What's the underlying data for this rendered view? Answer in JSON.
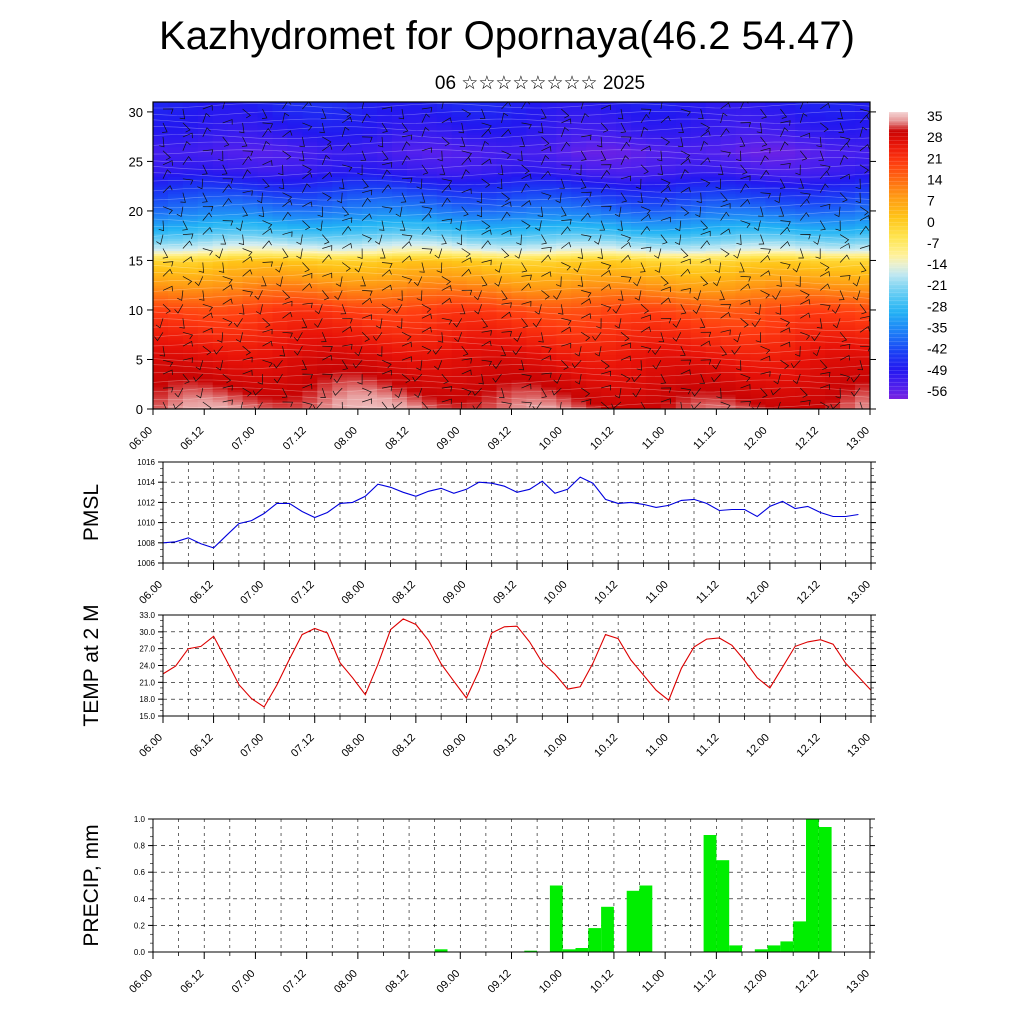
{
  "header": {
    "title": "Kazhydromet for Opornaya(46.2 54.47)",
    "subtitle": "06 ☆☆☆☆☆☆☆☆ 2025"
  },
  "chart_data": [
    {
      "type": "heatmap",
      "name_hint": "temperature-wind-cross-section",
      "xlabel": "",
      "ylabel": "",
      "x_ticks": [
        "06.00",
        "06.12",
        "07.00",
        "07.12",
        "08.00",
        "08.12",
        "09.00",
        "09.12",
        "10.00",
        "10.12",
        "11.00",
        "11.12",
        "12.00",
        "12.12",
        "13.00"
      ],
      "y_ticks": [
        0,
        5,
        10,
        15,
        20,
        25,
        30
      ],
      "ylim": [
        0,
        31
      ],
      "value_profile": {
        "levels": [
          0,
          5,
          10,
          13,
          15,
          16,
          18,
          20,
          22,
          24,
          26,
          28,
          31
        ],
        "values": [
          34,
          28,
          20,
          8,
          0,
          -14,
          -28,
          -38,
          -45,
          -53,
          -56,
          -52,
          -49
        ]
      },
      "colorbar": {
        "labels": [
          "35",
          "28",
          "21",
          "14",
          "7",
          "0",
          "-7",
          "-14",
          "-21",
          "-28",
          "-35",
          "-42",
          "-49",
          "-56"
        ],
        "range": [
          -60,
          38
        ]
      },
      "wind_barbs": true
    },
    {
      "type": "line",
      "ylabel": "PMSL",
      "ylim": [
        1006,
        1016
      ],
      "y_ticks": [
        "1006",
        "1008",
        "1010",
        "1012",
        "1014",
        "1016"
      ],
      "x_ticks": [
        "06.00",
        "06.12",
        "07.00",
        "07.12",
        "08.00",
        "08.12",
        "09.00",
        "09.12",
        "10.00",
        "10.12",
        "11.00",
        "11.12",
        "12.00",
        "12.12",
        "13.00"
      ],
      "x_step_hours": 3,
      "color": "#0000dd",
      "values": [
        1008.0,
        1008.1,
        1008.5,
        1007.9,
        1007.5,
        1008.7,
        1009.9,
        1010.2,
        1010.9,
        1011.9,
        1011.9,
        1011.1,
        1010.5,
        1011.0,
        1011.9,
        1012.0,
        1012.6,
        1013.8,
        1013.5,
        1013.0,
        1012.6,
        1013.1,
        1013.4,
        1012.9,
        1013.3,
        1014.0,
        1013.9,
        1013.6,
        1013.0,
        1013.3,
        1014.1,
        1012.9,
        1013.3,
        1014.5,
        1013.9,
        1012.3,
        1011.9,
        1012.0,
        1011.8,
        1011.5,
        1011.7,
        1012.2,
        1012.3,
        1011.9,
        1011.2,
        1011.3,
        1011.3,
        1010.6,
        1011.6,
        1012.1,
        1011.4,
        1011.6,
        1011.0,
        1010.6,
        1010.6,
        1010.8
      ]
    },
    {
      "type": "line",
      "ylabel": "TEMP at 2 M",
      "ylim": [
        15,
        33
      ],
      "y_ticks": [
        "15.0",
        "18.0",
        "21.0",
        "24.0",
        "27.0",
        "30.0",
        "33.0"
      ],
      "x_ticks": [
        "06.00",
        "06.12",
        "07.00",
        "07.12",
        "08.00",
        "08.12",
        "09.00",
        "09.12",
        "10.00",
        "10.12",
        "11.00",
        "11.12",
        "12.00",
        "12.12",
        "13.00"
      ],
      "x_step_hours": 3,
      "color": "#dd0000",
      "values": [
        22.5,
        23.9,
        27.0,
        27.4,
        29.2,
        25.0,
        20.6,
        18.1,
        16.6,
        20.5,
        25.1,
        29.5,
        30.6,
        29.8,
        24.5,
        21.8,
        18.8,
        24.2,
        30.4,
        32.3,
        31.3,
        28.5,
        24.3,
        21.2,
        18.2,
        23.1,
        29.8,
        30.9,
        31.0,
        28.2,
        24.5,
        22.5,
        19.8,
        20.2,
        24.4,
        29.5,
        28.8,
        25.0,
        22.3,
        19.6,
        17.8,
        23.5,
        27.3,
        28.7,
        28.9,
        27.6,
        24.9,
        21.8,
        20.0,
        23.7,
        27.4,
        28.2,
        28.6,
        27.8,
        24.4,
        22.0,
        19.6
      ]
    },
    {
      "type": "bar",
      "ylabel": "PRECIP, mm",
      "ylim": [
        0,
        1.0
      ],
      "y_ticks": [
        "0.0",
        "0.2",
        "0.4",
        "0.6",
        "0.8",
        "1.0"
      ],
      "x_ticks": [
        "06.00",
        "06.12",
        "07.00",
        "07.12",
        "08.00",
        "08.12",
        "09.00",
        "09.12",
        "10.00",
        "10.12",
        "11.00",
        "11.12",
        "12.00",
        "12.12",
        "13.00"
      ],
      "x_step_hours": 3,
      "color": "#00ee00",
      "values": [
        0,
        0,
        0,
        0,
        0,
        0,
        0,
        0,
        0,
        0,
        0,
        0,
        0,
        0,
        0,
        0,
        0,
        0,
        0,
        0,
        0,
        0,
        0.02,
        0,
        0,
        0,
        0,
        0,
        0,
        0.01,
        0,
        0.5,
        0.02,
        0.03,
        0.18,
        0.34,
        0,
        0.46,
        0.5,
        0,
        0,
        0,
        0,
        0.88,
        0.69,
        0.05,
        0,
        0.02,
        0.05,
        0.08,
        0.23,
        1.0,
        0.94,
        0,
        0,
        0
      ]
    }
  ]
}
